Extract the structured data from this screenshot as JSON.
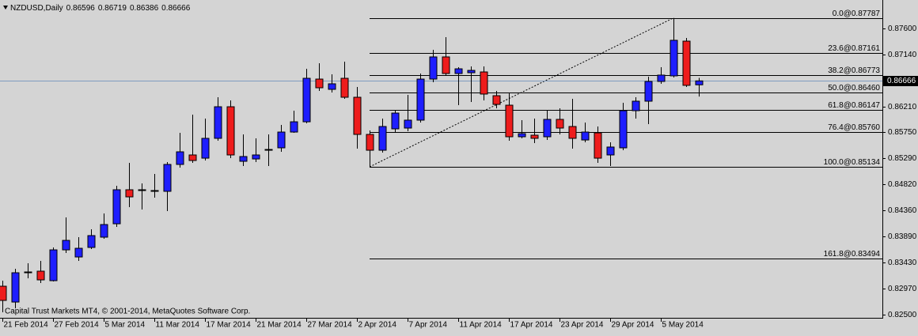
{
  "chart_data": {
    "type": "candlestick",
    "title": "NZDUSD,Daily",
    "watermark": "Capital Trust Markets MT4, © 2001-2014, MetaQuotes Software Corp.",
    "categories": [
      "21 Feb 2014",
      null,
      null,
      null,
      "27 Feb 2014",
      null,
      null,
      null,
      "5 Mar 2014",
      null,
      null,
      null,
      "11 Mar 2014",
      null,
      null,
      null,
      "17 Mar 2014",
      null,
      null,
      null,
      "21 Mar 2014",
      null,
      null,
      null,
      "27 Mar 2014",
      null,
      null,
      null,
      "2 Apr 2014",
      null,
      null,
      null,
      "7 Apr 2014",
      null,
      null,
      null,
      "11 Apr 2014",
      null,
      null,
      null,
      "17 Apr 2014",
      null,
      null,
      null,
      "23 Apr 2014",
      null,
      null,
      null,
      "29 Apr 2014",
      null,
      null,
      null,
      "5 May 2014",
      null,
      null,
      null
    ],
    "open": [
      0.83007,
      0.82725,
      0.83247,
      0.83275,
      0.83106,
      0.83655,
      0.83528,
      0.83698,
      0.83881,
      0.8412,
      0.84726,
      0.84726,
      0.84712,
      0.84698,
      0.85177,
      0.85346,
      0.85289,
      0.85642,
      0.86205,
      0.85233,
      0.85275,
      0.8543,
      0.85473,
      0.85754,
      0.85937,
      0.86698,
      0.86515,
      0.86712,
      0.86374,
      0.85712,
      0.8543,
      0.85811,
      0.85825,
      0.85966,
      0.86698,
      0.87093,
      0.86797,
      0.86811,
      0.86825,
      0.86402,
      0.86233,
      0.8567,
      0.85698,
      0.8567,
      0.8598,
      0.85853,
      0.85613,
      0.8574,
      0.85346,
      0.85473,
      0.86135,
      0.86304,
      0.86656,
      0.86755,
      0.87374,
      0.86596
    ],
    "high": [
      0.83106,
      0.83317,
      0.83416,
      0.83458,
      0.83698,
      0.84233,
      0.83881,
      0.84021,
      0.84303,
      0.84796,
      0.85205,
      0.84839,
      0.85008,
      0.85219,
      0.8574,
      0.86064,
      0.85994,
      0.86374,
      0.86318,
      0.85712,
      0.85642,
      0.85712,
      0.85881,
      0.86135,
      0.86881,
      0.8698,
      0.86783,
      0.87008,
      0.86557,
      0.85783,
      0.85994,
      0.86135,
      0.86416,
      0.86797,
      0.8722,
      0.87445,
      0.8691,
      0.86924,
      0.86924,
      0.86487,
      0.86445,
      0.85966,
      0.85994,
      0.86135,
      0.86177,
      0.86346,
      0.85923,
      0.85853,
      0.85571,
      0.86276,
      0.86374,
      0.86741,
      0.8691,
      0.87787,
      0.87431,
      0.86719
    ],
    "low": [
      0.82542,
      0.82613,
      0.83148,
      0.83064,
      0.83092,
      0.83599,
      0.83458,
      0.83669,
      0.83852,
      0.84064,
      0.84416,
      0.84374,
      0.84585,
      0.84346,
      0.8512,
      0.85205,
      0.85247,
      0.85599,
      0.85289,
      0.85149,
      0.85219,
      0.85149,
      0.85402,
      0.8574,
      0.85909,
      0.86487,
      0.86459,
      0.86346,
      0.85458,
      0.85134,
      0.85388,
      0.85754,
      0.85768,
      0.85923,
      0.86642,
      0.86769,
      0.86233,
      0.8629,
      0.86318,
      0.86177,
      0.85599,
      0.85642,
      0.85557,
      0.85613,
      0.85712,
      0.85458,
      0.85571,
      0.85205,
      0.85149,
      0.8543,
      0.85994,
      0.85895,
      0.86614,
      0.86726,
      0.86557,
      0.86386
    ],
    "close": [
      0.82754,
      0.83247,
      0.83261,
      0.8312,
      0.83655,
      0.83824,
      0.83683,
      0.83909,
      0.84106,
      0.84726,
      0.84599,
      0.84712,
      0.84698,
      0.85177,
      0.85402,
      0.85247,
      0.85642,
      0.86205,
      0.85346,
      0.85318,
      0.85346,
      0.85444,
      0.85754,
      0.85937,
      0.86712,
      0.86543,
      0.86614,
      0.86374,
      0.85712,
      0.8543,
      0.85853,
      0.86092,
      0.85966,
      0.86698,
      0.87093,
      0.86797,
      0.86881,
      0.86853,
      0.86431,
      0.86247,
      0.8567,
      0.85726,
      0.85642,
      0.8598,
      0.85825,
      0.85642,
      0.85754,
      0.85289,
      0.85487,
      0.86135,
      0.86304,
      0.86656,
      0.86769,
      0.87389,
      0.86586,
      0.86666
    ],
    "up_color": "#1e1eff",
    "down_color": "#ee1c1c",
    "ylim": [
      0.82444,
      0.88107
    ],
    "yticks": [
      {
        "value": 0.876,
        "label": "0.87600"
      },
      {
        "value": 0.8714,
        "label": "0.87140"
      },
      {
        "value": 0.8621,
        "label": "0.86210"
      },
      {
        "value": 0.8575,
        "label": "0.85750"
      },
      {
        "value": 0.8529,
        "label": "0.85290"
      },
      {
        "value": 0.8482,
        "label": "0.84820"
      },
      {
        "value": 0.8436,
        "label": "0.84360"
      },
      {
        "value": 0.8389,
        "label": "0.83890"
      },
      {
        "value": 0.8343,
        "label": "0.83430"
      },
      {
        "value": 0.8297,
        "label": "0.82970"
      },
      {
        "value": 0.825,
        "label": "0.82500"
      }
    ],
    "fib_levels": [
      {
        "value": 0.87787,
        "label": "0.0@0.87787"
      },
      {
        "value": 0.87161,
        "label": "23.6@0.87161"
      },
      {
        "value": 0.86773,
        "label": "38.2@0.86773"
      },
      {
        "value": 0.8646,
        "label": "50.0@0.86460"
      },
      {
        "value": 0.86147,
        "label": "61.8@0.86147"
      },
      {
        "value": 0.8576,
        "label": "76.4@0.85760"
      },
      {
        "value": 0.85134,
        "label": "100.0@0.85134"
      },
      {
        "value": 0.83494,
        "label": "161.8@0.83494"
      }
    ]
  }
}
